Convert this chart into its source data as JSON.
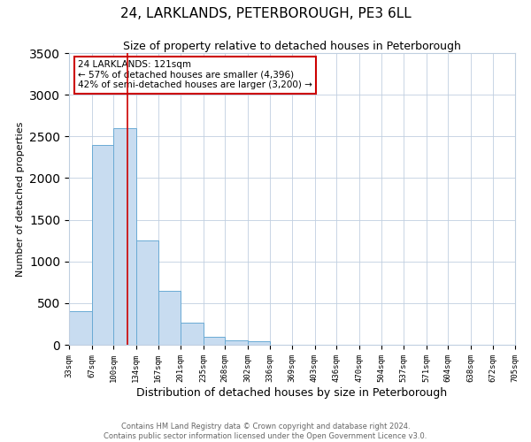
{
  "title": "24, LARKLANDS, PETERBOROUGH, PE3 6LL",
  "subtitle": "Size of property relative to detached houses in Peterborough",
  "xlabel": "Distribution of detached houses by size in Peterborough",
  "ylabel": "Number of detached properties",
  "bar_color": "#c8dcf0",
  "bar_edge_color": "#6aaad4",
  "vline_color": "#cc0000",
  "vline_x": 121,
  "ylim": [
    0,
    3500
  ],
  "annotation_title": "24 LARKLANDS: 121sqm",
  "annotation_line1": "← 57% of detached houses are smaller (4,396)",
  "annotation_line2": "42% of semi-detached houses are larger (3,200) →",
  "annotation_box_color": "#cc0000",
  "footer1": "Contains HM Land Registry data © Crown copyright and database right 2024.",
  "footer2": "Contains public sector information licensed under the Open Government Licence v3.0.",
  "bg_color": "#ffffff",
  "grid_color": "#c0cfe0",
  "bin_edges": [
    33,
    67,
    100,
    134,
    167,
    201,
    235,
    268,
    302,
    336,
    369,
    403,
    436,
    470,
    504,
    537,
    571,
    604,
    638,
    672,
    705
  ],
  "bar_heights": [
    400,
    2400,
    2600,
    1250,
    650,
    260,
    100,
    50,
    40,
    0,
    0,
    0,
    0,
    0,
    0,
    0,
    0,
    0,
    0,
    0
  ]
}
